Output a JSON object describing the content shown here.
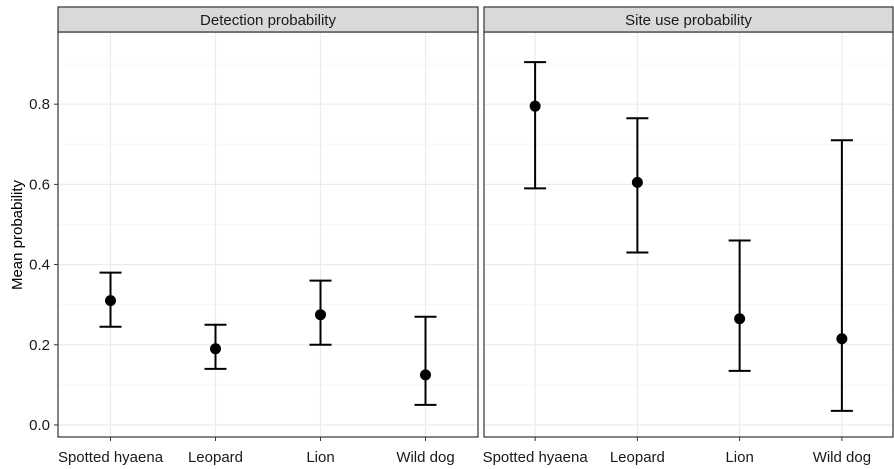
{
  "chart_data": {
    "type": "errorbar",
    "ylabel": "Mean probability",
    "ylim": [
      -0.03,
      0.98
    ],
    "yticks": [
      "0.0",
      "0.2",
      "0.4",
      "0.6",
      "0.8"
    ],
    "categories": [
      "Spotted hyaena",
      "Leopard",
      "Lion",
      "Wild dog"
    ],
    "grid": true,
    "panels": [
      {
        "title": "Detection probability",
        "points": [
          {
            "category": "Spotted hyaena",
            "mean": 0.31,
            "lower": 0.245,
            "upper": 0.38
          },
          {
            "category": "Leopard",
            "mean": 0.19,
            "lower": 0.14,
            "upper": 0.25
          },
          {
            "category": "Lion",
            "mean": 0.275,
            "lower": 0.2,
            "upper": 0.36
          },
          {
            "category": "Wild dog",
            "mean": 0.125,
            "lower": 0.05,
            "upper": 0.27
          }
        ]
      },
      {
        "title": "Site use probability",
        "points": [
          {
            "category": "Spotted hyaena",
            "mean": 0.795,
            "lower": 0.59,
            "upper": 0.905
          },
          {
            "category": "Leopard",
            "mean": 0.605,
            "lower": 0.43,
            "upper": 0.765
          },
          {
            "category": "Lion",
            "mean": 0.265,
            "lower": 0.135,
            "upper": 0.46
          },
          {
            "category": "Wild dog",
            "mean": 0.215,
            "lower": 0.035,
            "upper": 0.71
          }
        ]
      }
    ],
    "colors": {
      "point": "#000000",
      "strip_fill": "#d9d9d9",
      "grid_major": "#ebebeb",
      "grid_minor": "#f5f5f5",
      "panel_border": "#333333"
    }
  }
}
